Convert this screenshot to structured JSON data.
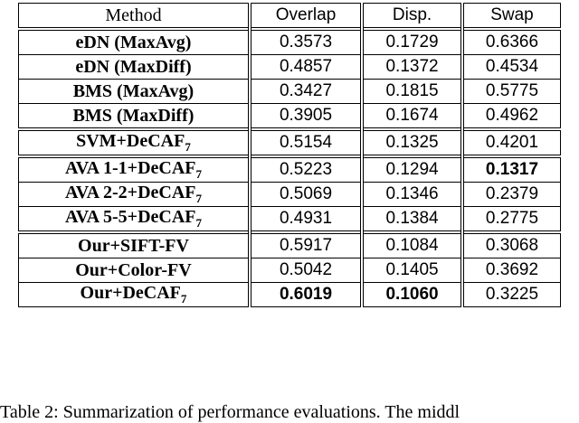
{
  "table": {
    "header": [
      "Method",
      "Overlap",
      "Disp.",
      "Swap"
    ],
    "groups": [
      [
        {
          "method": "eDN (MaxAvg)",
          "cells": [
            "0.3573",
            "0.1729",
            "0.6366"
          ]
        },
        {
          "method": "eDN (MaxDiff)",
          "cells": [
            "0.4857",
            "0.1372",
            "0.4534"
          ]
        },
        {
          "method": "BMS (MaxAvg)",
          "cells": [
            "0.3427",
            "0.1815",
            "0.5775"
          ]
        },
        {
          "method": "BMS (MaxDiff)",
          "cells": [
            "0.3905",
            "0.1674",
            "0.4962"
          ]
        }
      ],
      [
        {
          "method": "SVM+DeCAF",
          "subscript": "7",
          "cells": [
            "0.5154",
            "0.1325",
            "0.4201"
          ]
        }
      ],
      [
        {
          "method": "AVA 1-1+DeCAF",
          "subscript": "7",
          "cells": [
            "0.5223",
            "0.1294",
            "0.1317"
          ],
          "bold": [
            false,
            false,
            true
          ]
        },
        {
          "method": "AVA 2-2+DeCAF",
          "subscript": "7",
          "cells": [
            "0.5069",
            "0.1346",
            "0.2379"
          ]
        },
        {
          "method": "AVA 5-5+DeCAF",
          "subscript": "7",
          "cells": [
            "0.4931",
            "0.1384",
            "0.2775"
          ]
        }
      ],
      [
        {
          "method": "Our+SIFT-FV",
          "cells": [
            "0.5917",
            "0.1084",
            "0.3068"
          ]
        },
        {
          "method": "Our+Color-FV",
          "cells": [
            "0.5042",
            "0.1405",
            "0.3692"
          ]
        },
        {
          "method": "Our+DeCAF",
          "subscript": "7",
          "cells": [
            "0.6019",
            "0.1060",
            "0.3225"
          ],
          "bold": [
            true,
            true,
            false
          ]
        }
      ]
    ]
  },
  "caption": "Table 2: Summarization of performance evaluations. The middl"
}
